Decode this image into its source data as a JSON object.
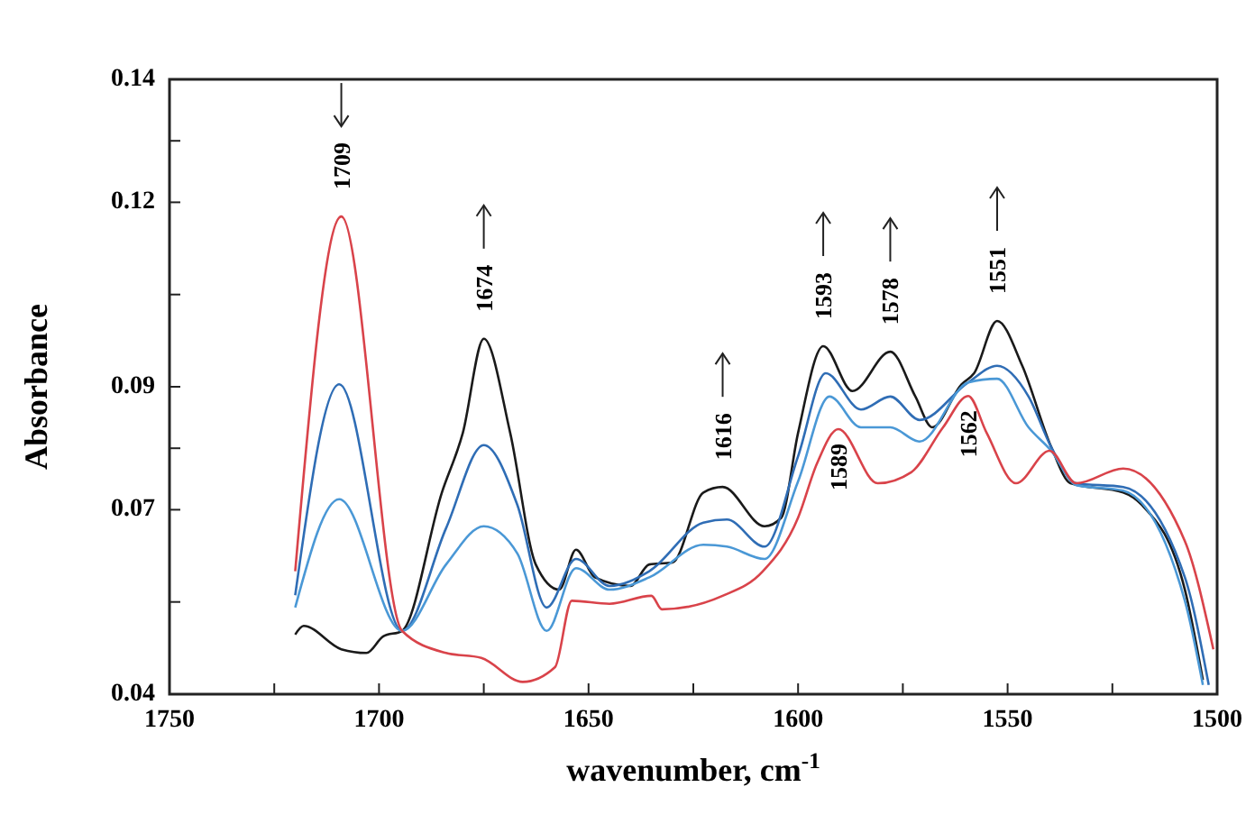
{
  "chart_data": {
    "type": "line",
    "xlabel": "wavenumber, cm$^{-1}$",
    "ylabel": "Absorbance",
    "xlim": [
      1750,
      1500
    ],
    "xticks": [
      1750,
      {
        "value": 1725,
        "label": null
      },
      1700,
      {
        "value": 1675,
        "label": null
      },
      1650,
      {
        "value": 1625,
        "label": null
      },
      1600,
      {
        "value": 1575,
        "label": null
      },
      1550,
      {
        "value": 1525,
        "label": null
      },
      1500
    ],
    "ylim": [
      0.04,
      0.14
    ],
    "yticks": [
      0.04,
      {
        "value": 0.055,
        "label": null
      },
      0.07,
      {
        "value": 0.08,
        "label": null
      },
      0.09,
      {
        "value": 0.105,
        "label": null
      },
      0.12,
      {
        "value": 0.13,
        "label": null
      },
      0.14
    ],
    "grid": false,
    "marker": "none",
    "line_style": "solid",
    "series": [
      {
        "color": "#1a1a1a",
        "x": [
          1720,
          1718,
          1709,
          1703,
          1699,
          1694.5,
          1685,
          1680,
          1675,
          1668.7,
          1662.6,
          1657,
          1653,
          1648.5,
          1640,
          1635.5,
          1630,
          1622.6,
          1618,
          1608,
          1604,
          1600,
          1594,
          1587,
          1578,
          1572,
          1568,
          1561,
          1558,
          1552.5,
          1546.5,
          1539.6,
          1535,
          1522.4,
          1518,
          1507.7,
          1503.4
        ],
        "values": [
          0.0497,
          0.0511,
          0.0473,
          0.0467,
          0.0494,
          0.0503,
          0.0728,
          0.0825,
          0.0978,
          0.0825,
          0.0611,
          0.057,
          0.0635,
          0.059,
          0.0576,
          0.0611,
          0.0614,
          0.0728,
          0.0737,
          0.0673,
          0.0687,
          0.0825,
          0.0966,
          0.0893,
          0.0957,
          0.0884,
          0.0834,
          0.0904,
          0.0922,
          0.1007,
          0.0934,
          0.0802,
          0.0743,
          0.0728,
          0.0708,
          0.057,
          0.0423
        ]
      },
      {
        "color": "#2f6db5",
        "x": [
          1720,
          1709.5,
          1694.5,
          1684,
          1675,
          1667,
          1660,
          1653,
          1645,
          1635.5,
          1622.6,
          1617,
          1608,
          1600,
          1593.4,
          1585,
          1578,
          1571,
          1559.4,
          1552.5,
          1545,
          1539.6,
          1533.6,
          1522.4,
          1507.7,
          1502
        ],
        "values": [
          0.0561,
          0.0904,
          0.0503,
          0.067,
          0.0805,
          0.0708,
          0.0541,
          0.062,
          0.0576,
          0.06,
          0.0679,
          0.0684,
          0.064,
          0.0787,
          0.0922,
          0.0863,
          0.0884,
          0.0846,
          0.0907,
          0.0934,
          0.0884,
          0.0802,
          0.0743,
          0.0737,
          0.059,
          0.0415
        ]
      },
      {
        "color": "#4a98d6",
        "x": [
          1720,
          1709.5,
          1694.5,
          1684,
          1675,
          1667,
          1660,
          1653,
          1645,
          1635.5,
          1622.6,
          1617,
          1608,
          1600,
          1592.5,
          1585,
          1578,
          1571,
          1559.4,
          1552.5,
          1545,
          1539.6,
          1533.6,
          1522.4,
          1507.7,
          1503.4
        ],
        "values": [
          0.0541,
          0.0717,
          0.0503,
          0.0611,
          0.0673,
          0.0629,
          0.0503,
          0.0605,
          0.057,
          0.059,
          0.0643,
          0.064,
          0.062,
          0.0746,
          0.0884,
          0.0834,
          0.0834,
          0.0811,
          0.0907,
          0.0913,
          0.0834,
          0.0796,
          0.074,
          0.0731,
          0.0552,
          0.0415
        ]
      },
      {
        "color": "#d9434a",
        "x": [
          1720,
          1709,
          1694.5,
          1684,
          1675.6,
          1665.7,
          1658,
          1654,
          1645,
          1635,
          1632.5,
          1618,
          1608.4,
          1600,
          1595.5,
          1590.4,
          1581,
          1573,
          1565.4,
          1559.4,
          1555,
          1548,
          1540,
          1533.6,
          1522.4,
          1507.7,
          1500.9
        ],
        "values": [
          0.06,
          0.1177,
          0.0503,
          0.0467,
          0.0459,
          0.042,
          0.0444,
          0.0552,
          0.0547,
          0.056,
          0.0538,
          0.056,
          0.06,
          0.0687,
          0.0775,
          0.0831,
          0.0743,
          0.0761,
          0.0834,
          0.0885,
          0.0825,
          0.0743,
          0.0796,
          0.0743,
          0.0767,
          0.0649,
          0.0473
        ]
      }
    ],
    "annotations": [
      {
        "text": "1709",
        "x": 1709,
        "y": 0.1177
      },
      {
        "text": "1674",
        "x": 1675,
        "y": 0.0978
      },
      {
        "text": "1616",
        "x": 1618,
        "y": 0.0737
      },
      {
        "text": "1593",
        "x": 1594,
        "y": 0.0966
      },
      {
        "text": "1578",
        "x": 1578,
        "y": 0.0957
      },
      {
        "text": "1551",
        "x": 1552.5,
        "y": 0.1007
      },
      {
        "text": "1589",
        "x": 1590.4,
        "y": 0.0831
      },
      {
        "text": "1562",
        "x": 1559.4,
        "y": 0.0885
      }
    ]
  }
}
